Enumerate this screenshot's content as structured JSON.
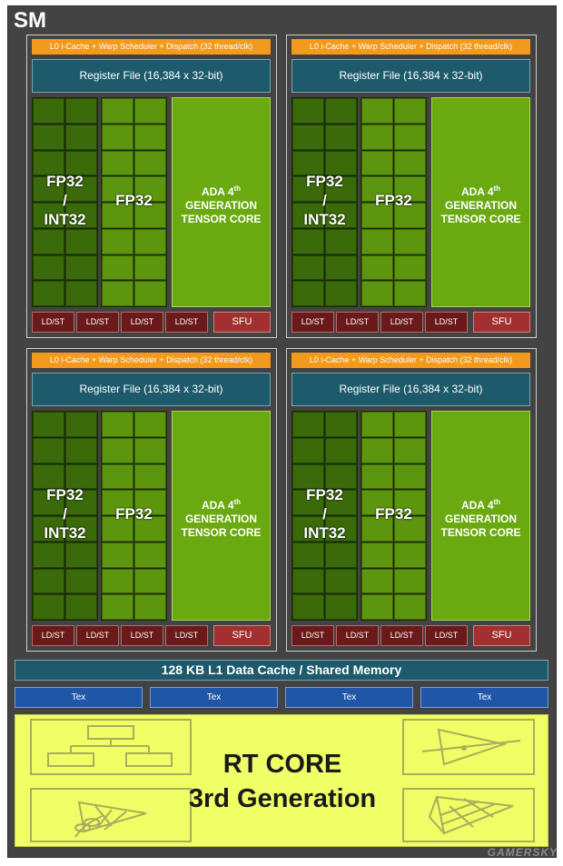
{
  "sm": {
    "title": "SM",
    "partitions": [
      {
        "l0_label": "L0 i-Cache + Warp Scheduler + Dispatch (32 thread/clk)",
        "register_file": "Register File (16,384 x 32-bit)",
        "fp32_int32": [
          "FP32",
          "/",
          "INT32"
        ],
        "fp32": "FP32",
        "tensor": {
          "line1_prefix": "ADA 4",
          "line1_sup": "th",
          "line2": "GENERATION",
          "line3": "TENSOR CORE"
        },
        "ldst": [
          "LD/ST",
          "LD/ST",
          "LD/ST",
          "LD/ST"
        ],
        "sfu": "SFU"
      },
      {
        "l0_label": "L0 i-Cache + Warp Scheduler + Dispatch (32 thread/clk)",
        "register_file": "Register File (16,384 x 32-bit)",
        "fp32_int32": [
          "FP32",
          "/",
          "INT32"
        ],
        "fp32": "FP32",
        "tensor": {
          "line1_prefix": "ADA 4",
          "line1_sup": "th",
          "line2": "GENERATION",
          "line3": "TENSOR CORE"
        },
        "ldst": [
          "LD/ST",
          "LD/ST",
          "LD/ST",
          "LD/ST"
        ],
        "sfu": "SFU"
      },
      {
        "l0_label": "L0 i-Cache + Warp Scheduler + Dispatch (32 thread/clk)",
        "register_file": "Register File (16,384 x 32-bit)",
        "fp32_int32": [
          "FP32",
          "/",
          "INT32"
        ],
        "fp32": "FP32",
        "tensor": {
          "line1_prefix": "ADA 4",
          "line1_sup": "th",
          "line2": "GENERATION",
          "line3": "TENSOR CORE"
        },
        "ldst": [
          "LD/ST",
          "LD/ST",
          "LD/ST",
          "LD/ST"
        ],
        "sfu": "SFU"
      },
      {
        "l0_label": "L0 i-Cache + Warp Scheduler + Dispatch (32 thread/clk)",
        "register_file": "Register File (16,384 x 32-bit)",
        "fp32_int32": [
          "FP32",
          "/",
          "INT32"
        ],
        "fp32": "FP32",
        "tensor": {
          "line1_prefix": "ADA 4",
          "line1_sup": "th",
          "line2": "GENERATION",
          "line3": "TENSOR CORE"
        },
        "ldst": [
          "LD/ST",
          "LD/ST",
          "LD/ST",
          "LD/ST"
        ],
        "sfu": "SFU"
      }
    ],
    "l1_cache": "128 KB L1 Data Cache / Shared Memory",
    "tex_units": [
      "Tex",
      "Tex",
      "Tex",
      "Tex"
    ],
    "rt_core": {
      "line1": "RT CORE",
      "line2": "3rd Generation"
    }
  },
  "watermark": "GAMERSKY",
  "colors": {
    "sm_background": "#434343",
    "l0_orange": "#f39a1c",
    "register_teal": "#1d5a6b",
    "int32_green": "#3a6a0a",
    "fp32_green": "#5c960f",
    "tensor_green": "#6aaa10",
    "ldst_red": "#6b1a1a",
    "sfu_red": "#a33030",
    "tex_blue": "#1f56a8",
    "rt_yellow": "#efff66"
  },
  "icons": [
    "bvh-tree-icon",
    "triangle-intersection-icon",
    "leaf-opacity-micromap-icon",
    "displaced-micromesh-icon"
  ]
}
